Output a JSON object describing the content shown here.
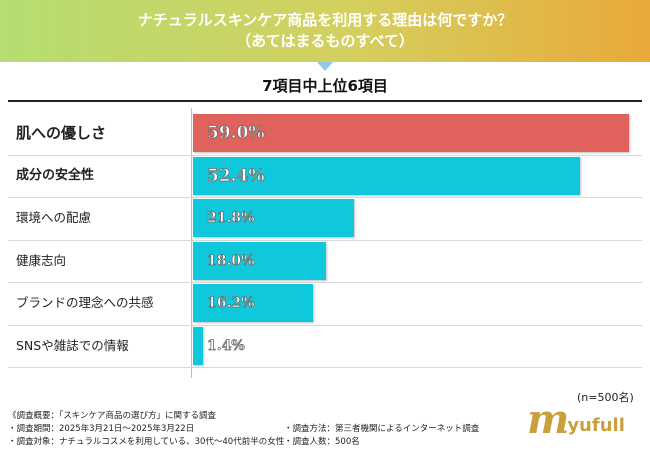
{
  "header": {
    "title_line1": "ナチュラルスキンケア商品を利用する理由は何ですか？",
    "title_line2": "（あてはまるものすべて）"
  },
  "subtitle": "7項目中上位6項目",
  "colors": {
    "top_bar": "#e0625c",
    "other_bars": "#10c8dc"
  },
  "chart_data": {
    "type": "bar",
    "orientation": "horizontal",
    "title": "ナチュラルスキンケア商品を利用する理由は何ですか？（あてはまるものすべて）",
    "subtitle": "7項目中上位6項目",
    "unit": "%",
    "categories": [
      "肌への優しさ",
      "成分の安全性",
      "環境への配慮",
      "健康志向",
      "ブランドの理念への共感",
      "SNSや雑誌での情報"
    ],
    "values": [
      59.0,
      52.4,
      21.8,
      18.0,
      16.2,
      1.4
    ],
    "value_labels": [
      "59.0%",
      "52.4%",
      "21.8%",
      "18.0%",
      "16.2%",
      "1.4%"
    ],
    "xlim": [
      0,
      59.0
    ]
  },
  "sample_note": "(n=500名)",
  "notes": {
    "survey_overview": "《調査概要：「スキンケア商品の選び方」に関する調査",
    "period": "・調査期間：2025年3月21日～2025年3月22日",
    "target": "・調査対象：ナチュラルコスメを利用している、30代～40代前半の女性",
    "method": "・調査方法：第三者機関によるインターネット調査",
    "respondents": "・調査人数：500名"
  },
  "logo": {
    "mark": "m",
    "text": "yufull"
  }
}
